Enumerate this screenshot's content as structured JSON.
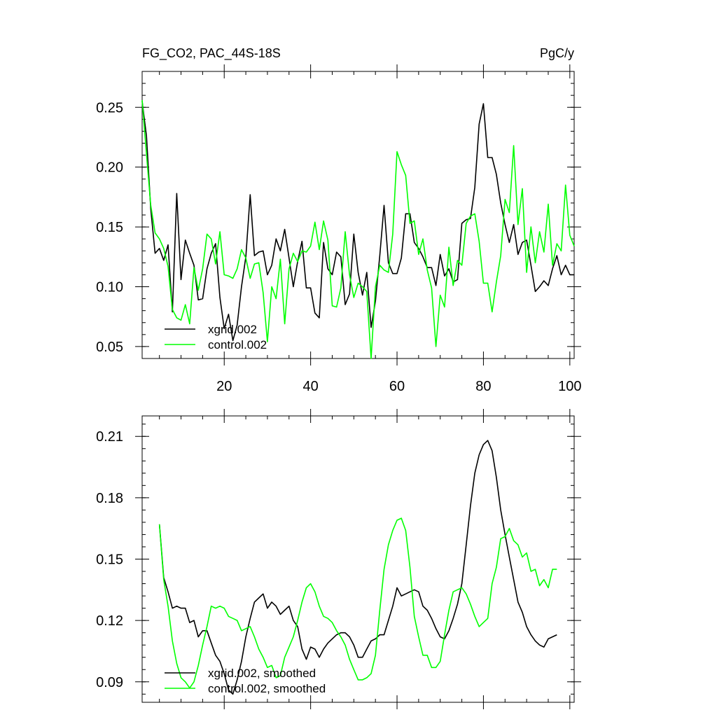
{
  "chart_data": [
    {
      "type": "line",
      "title_left": "FG_CO2, PAC_44S-18S",
      "title_right": "PgC/y",
      "xlim": [
        1,
        101
      ],
      "ylim": [
        0.04,
        0.28
      ],
      "x_ticks": [
        20,
        40,
        60,
        80,
        100
      ],
      "x_tick_labels": [
        "20",
        "40",
        "60",
        "80",
        "100"
      ],
      "y_ticks": [
        0.05,
        0.1,
        0.15,
        0.2,
        0.25
      ],
      "y_tick_labels": [
        "0.05",
        "0.10",
        "0.15",
        "0.20",
        "0.25"
      ],
      "legend_position": "bottom-left",
      "x": [
        1,
        2,
        3,
        4,
        5,
        6,
        7,
        8,
        9,
        10,
        11,
        12,
        13,
        14,
        15,
        16,
        17,
        18,
        19,
        20,
        21,
        22,
        23,
        24,
        25,
        26,
        27,
        28,
        29,
        30,
        31,
        32,
        33,
        34,
        35,
        36,
        37,
        38,
        39,
        40,
        41,
        42,
        43,
        44,
        45,
        46,
        47,
        48,
        49,
        50,
        51,
        52,
        53,
        54,
        55,
        56,
        57,
        58,
        59,
        60,
        61,
        62,
        63,
        64,
        65,
        66,
        67,
        68,
        69,
        70,
        71,
        72,
        73,
        74,
        75,
        76,
        77,
        78,
        79,
        80,
        81,
        82,
        83,
        84,
        85,
        86,
        87,
        88,
        89,
        90,
        91,
        92,
        93,
        94,
        95,
        96,
        97,
        98,
        99,
        100,
        101
      ],
      "series": [
        {
          "name": "xgrid.002",
          "color": "#000000",
          "values": [
            0.255,
            0.226,
            0.165,
            0.128,
            0.132,
            0.122,
            0.135,
            0.079,
            0.178,
            0.106,
            0.139,
            0.128,
            0.118,
            0.089,
            0.09,
            0.115,
            0.128,
            0.136,
            0.091,
            0.065,
            0.077,
            0.055,
            0.068,
            0.1,
            0.125,
            0.177,
            0.126,
            0.129,
            0.13,
            0.11,
            0.118,
            0.14,
            0.13,
            0.148,
            0.124,
            0.1,
            0.121,
            0.138,
            0.099,
            0.099,
            0.078,
            0.074,
            0.137,
            0.115,
            0.11,
            0.129,
            0.125,
            0.085,
            0.094,
            0.144,
            0.112,
            0.093,
            0.112,
            0.066,
            0.088,
            0.126,
            0.168,
            0.12,
            0.111,
            0.111,
            0.124,
            0.161,
            0.161,
            0.137,
            0.132,
            0.125,
            0.116,
            0.116,
            0.101,
            0.127,
            0.109,
            0.115,
            0.104,
            0.106,
            0.153,
            0.156,
            0.157,
            0.183,
            0.236,
            0.253,
            0.208,
            0.208,
            0.194,
            0.17,
            0.152,
            0.137,
            0.152,
            0.127,
            0.137,
            0.139,
            0.118,
            0.096,
            0.1,
            0.105,
            0.101,
            0.115,
            0.126,
            0.11,
            0.118,
            0.11,
            0.11
          ]
        },
        {
          "name": "control.002",
          "color": "#00ff00",
          "values": [
            0.256,
            0.211,
            0.168,
            0.145,
            0.14,
            0.132,
            0.117,
            0.081,
            0.074,
            0.072,
            0.085,
            0.069,
            0.116,
            0.097,
            0.115,
            0.144,
            0.14,
            0.119,
            0.146,
            0.11,
            0.109,
            0.107,
            0.115,
            0.131,
            0.124,
            0.107,
            0.119,
            0.12,
            0.095,
            0.054,
            0.1,
            0.09,
            0.123,
            0.069,
            0.115,
            0.128,
            0.121,
            0.13,
            0.129,
            0.134,
            0.154,
            0.131,
            0.155,
            0.139,
            0.084,
            0.083,
            0.099,
            0.146,
            0.11,
            0.091,
            0.103,
            0.1,
            0.096,
            0.04,
            0.1,
            0.118,
            0.114,
            0.112,
            0.144,
            0.213,
            0.202,
            0.193,
            0.153,
            0.155,
            0.127,
            0.14,
            0.114,
            0.099,
            0.05,
            0.093,
            0.083,
            0.133,
            0.101,
            0.122,
            0.118,
            0.153,
            0.159,
            0.161,
            0.138,
            0.103,
            0.103,
            0.079,
            0.104,
            0.126,
            0.173,
            0.162,
            0.218,
            0.152,
            0.182,
            0.112,
            0.15,
            0.12,
            0.146,
            0.129,
            0.169,
            0.118,
            0.136,
            0.13,
            0.185,
            0.143,
            0.134
          ]
        }
      ]
    },
    {
      "type": "line",
      "xlim": [
        1,
        101
      ],
      "ylim": [
        0.08,
        0.22
      ],
      "x_ticks": [
        20,
        40,
        60,
        80,
        100
      ],
      "y_ticks": [
        0.09,
        0.12,
        0.15,
        0.18,
        0.21
      ],
      "y_tick_labels": [
        "0.09",
        "0.12",
        "0.15",
        "0.18",
        "0.21"
      ],
      "legend_position": "bottom-left",
      "x": [
        5,
        6,
        7,
        8,
        9,
        10,
        11,
        12,
        13,
        14,
        15,
        16,
        17,
        18,
        19,
        20,
        21,
        22,
        23,
        24,
        25,
        26,
        27,
        28,
        29,
        30,
        31,
        32,
        33,
        34,
        35,
        36,
        37,
        38,
        39,
        40,
        41,
        42,
        43,
        44,
        45,
        46,
        47,
        48,
        49,
        50,
        51,
        52,
        53,
        54,
        55,
        56,
        57,
        58,
        59,
        60,
        61,
        62,
        63,
        64,
        65,
        66,
        67,
        68,
        69,
        70,
        71,
        72,
        73,
        74,
        75,
        76,
        77,
        78,
        79,
        80,
        81,
        82,
        83,
        84,
        85,
        86,
        87,
        88,
        89,
        90,
        91,
        92,
        93,
        94,
        95,
        96,
        97
      ],
      "series": [
        {
          "name": "xgrid.002, smoothed",
          "color": "#000000",
          "values": [
            0.167,
            0.141,
            0.134,
            0.126,
            0.127,
            0.126,
            0.126,
            0.119,
            0.12,
            0.112,
            0.115,
            0.115,
            0.109,
            0.103,
            0.1,
            0.094,
            0.086,
            0.084,
            0.091,
            0.1,
            0.112,
            0.121,
            0.129,
            0.131,
            0.133,
            0.126,
            0.129,
            0.127,
            0.123,
            0.125,
            0.127,
            0.12,
            0.117,
            0.106,
            0.101,
            0.107,
            0.106,
            0.102,
            0.106,
            0.109,
            0.111,
            0.113,
            0.114,
            0.114,
            0.112,
            0.108,
            0.102,
            0.102,
            0.106,
            0.11,
            0.111,
            0.113,
            0.113,
            0.12,
            0.127,
            0.136,
            0.132,
            0.133,
            0.134,
            0.135,
            0.134,
            0.127,
            0.125,
            0.121,
            0.116,
            0.112,
            0.111,
            0.115,
            0.121,
            0.128,
            0.138,
            0.157,
            0.176,
            0.192,
            0.201,
            0.206,
            0.208,
            0.203,
            0.19,
            0.174,
            0.162,
            0.151,
            0.14,
            0.129,
            0.124,
            0.117,
            0.113,
            0.11,
            0.108,
            0.107,
            0.111,
            0.112,
            0.113
          ]
        },
        {
          "name": "control.002, smoothed",
          "color": "#00ff00",
          "values": [
            0.167,
            0.14,
            0.127,
            0.11,
            0.099,
            0.092,
            0.09,
            0.087,
            0.09,
            0.098,
            0.108,
            0.117,
            0.127,
            0.126,
            0.127,
            0.126,
            0.122,
            0.121,
            0.12,
            0.115,
            0.116,
            0.117,
            0.112,
            0.106,
            0.102,
            0.097,
            0.098,
            0.092,
            0.093,
            0.102,
            0.107,
            0.112,
            0.12,
            0.129,
            0.136,
            0.138,
            0.134,
            0.127,
            0.122,
            0.121,
            0.119,
            0.115,
            0.112,
            0.108,
            0.101,
            0.096,
            0.091,
            0.091,
            0.092,
            0.094,
            0.103,
            0.125,
            0.145,
            0.157,
            0.164,
            0.169,
            0.17,
            0.164,
            0.146,
            0.122,
            0.112,
            0.103,
            0.103,
            0.097,
            0.097,
            0.1,
            0.113,
            0.125,
            0.134,
            0.135,
            0.136,
            0.133,
            0.128,
            0.122,
            0.117,
            0.119,
            0.121,
            0.138,
            0.146,
            0.16,
            0.161,
            0.165,
            0.159,
            0.157,
            0.151,
            0.153,
            0.144,
            0.145,
            0.137,
            0.14,
            0.136,
            0.145,
            0.145
          ]
        }
      ]
    }
  ]
}
